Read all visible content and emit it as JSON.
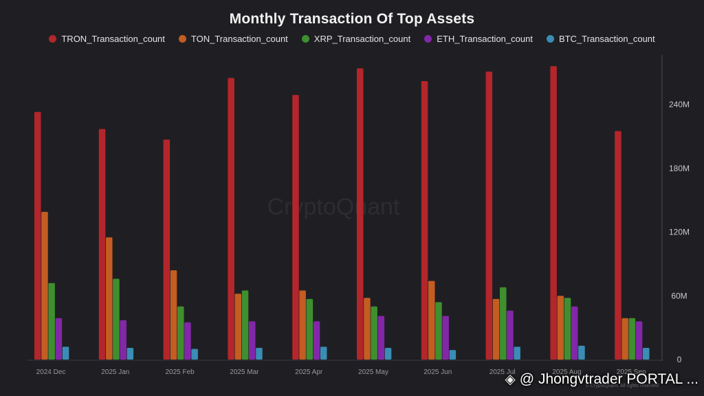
{
  "chart_data": {
    "type": "bar",
    "title": "Monthly Transaction Of Top Assets",
    "categories": [
      "2024 Dec",
      "2025 Jan",
      "2025 Feb",
      "2025 Mar",
      "2025 Apr",
      "2025 May",
      "2025 Jun",
      "2025 Jul",
      "2025 Aug",
      "2025 Sep"
    ],
    "series": [
      {
        "name": "TRON_Transaction_count",
        "color": "#b3262b",
        "values": [
          233,
          217,
          207,
          265,
          249,
          274,
          262,
          271,
          276,
          215
        ]
      },
      {
        "name": "TON_Transaction_count",
        "color": "#c35d22",
        "values": [
          139,
          115,
          84,
          62,
          65,
          58,
          74,
          57,
          60,
          39
        ]
      },
      {
        "name": "XRP_Transaction_count",
        "color": "#3f8f2f",
        "values": [
          72,
          76,
          50,
          65,
          57,
          50,
          54,
          68,
          58,
          39
        ]
      },
      {
        "name": "ETH_Transaction_count",
        "color": "#8227a8",
        "values": [
          39,
          37,
          35,
          36,
          36,
          41,
          41,
          46,
          50,
          36
        ]
      },
      {
        "name": "BTC_Transaction_count",
        "color": "#3a8db5",
        "values": [
          12,
          11,
          10,
          11,
          12,
          11,
          9,
          12,
          13,
          11
        ]
      }
    ],
    "ylim": [
      0,
      280
    ],
    "yticks": [
      0,
      60,
      120,
      180,
      240
    ],
    "ytick_labels": [
      "0",
      "60M",
      "120M",
      "180M",
      "240M"
    ],
    "y_axis_position": "right",
    "legend_position": "top-center",
    "grid": false,
    "watermark": "CryptoQuant"
  },
  "copyright_text": "© CryptoQuant. All rights reserved",
  "overlay": {
    "icon": "binance-square-icon",
    "text": "@ Jhongvtrader PORTAL ..."
  }
}
